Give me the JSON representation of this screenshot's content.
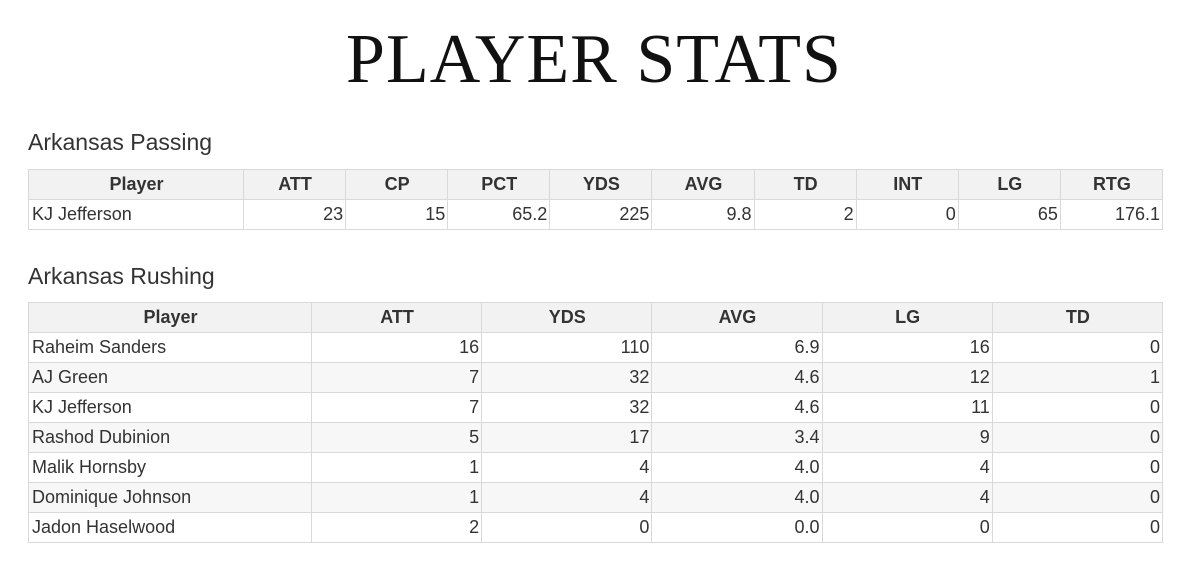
{
  "page_title": "PLAYER STATS",
  "passing": {
    "title": "Arkansas Passing",
    "columns": [
      "Player",
      "ATT",
      "CP",
      "PCT",
      "YDS",
      "AVG",
      "TD",
      "INT",
      "LG",
      "RTG"
    ],
    "rows": [
      [
        "KJ Jefferson",
        "23",
        "15",
        "65.2",
        "225",
        "9.8",
        "2",
        "0",
        "65",
        "176.1"
      ]
    ]
  },
  "rushing": {
    "title": "Arkansas Rushing",
    "columns": [
      "Player",
      "ATT",
      "YDS",
      "AVG",
      "LG",
      "TD"
    ],
    "rows": [
      [
        "Raheim Sanders",
        "16",
        "110",
        "6.9",
        "16",
        "0"
      ],
      [
        "AJ Green",
        "7",
        "32",
        "4.6",
        "12",
        "1"
      ],
      [
        "KJ Jefferson",
        "7",
        "32",
        "4.6",
        "11",
        "0"
      ],
      [
        "Rashod Dubinion",
        "5",
        "17",
        "3.4",
        "9",
        "0"
      ],
      [
        "Malik Hornsby",
        "1",
        "4",
        "4.0",
        "4",
        "0"
      ],
      [
        "Dominique Johnson",
        "1",
        "4",
        "4.0",
        "4",
        "0"
      ],
      [
        "Jadon Haselwood",
        "2",
        "0",
        "0.0",
        "0",
        "0"
      ]
    ]
  }
}
